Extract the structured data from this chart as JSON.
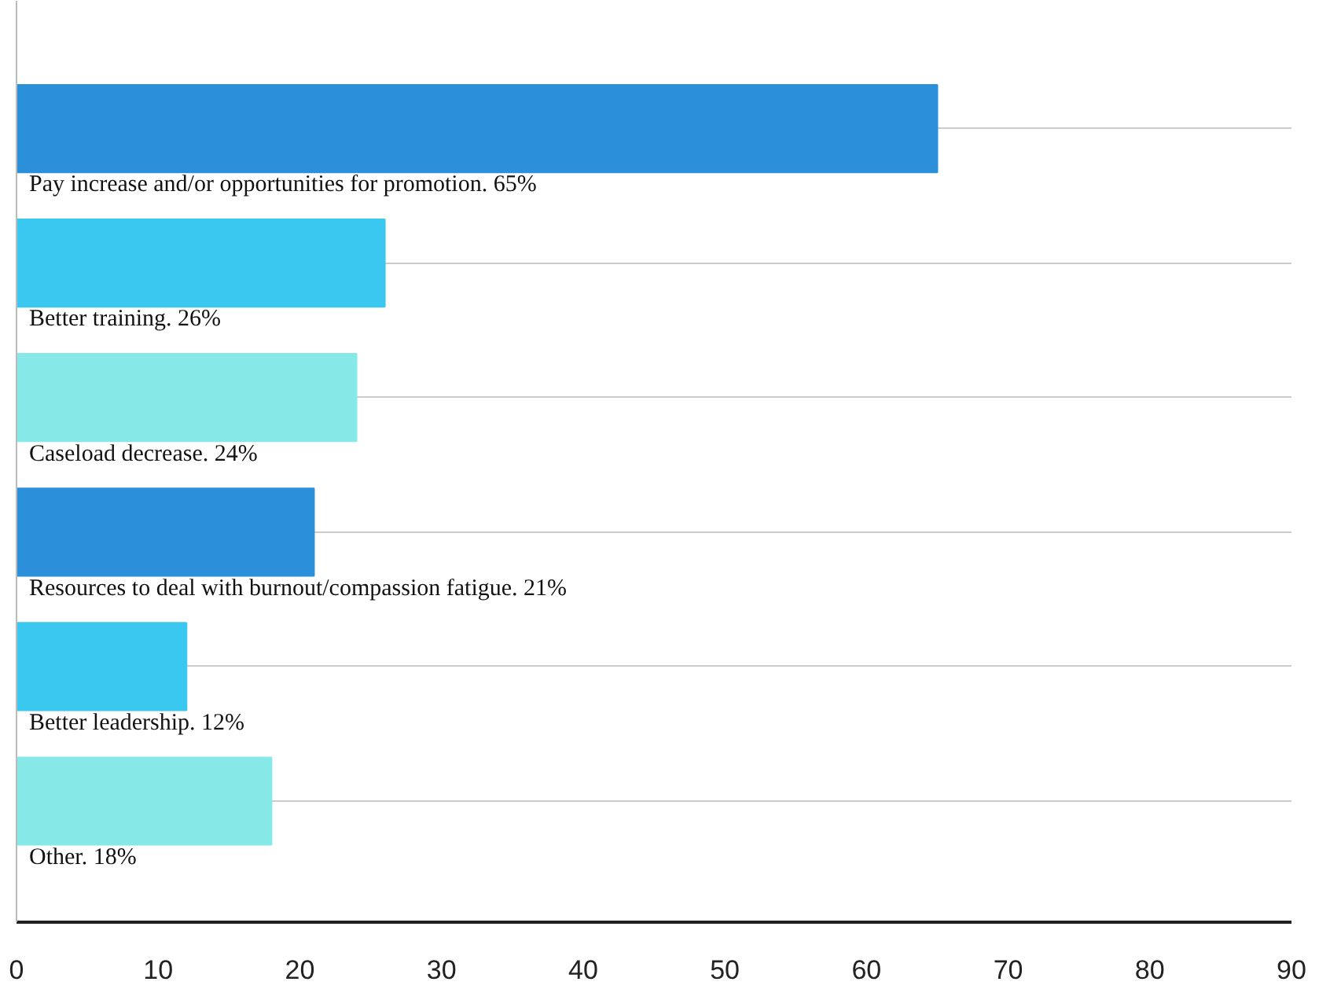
{
  "chart_data": {
    "type": "bar",
    "orientation": "horizontal",
    "categories": [
      "Pay increase and/or opportunities for promotion. 65%",
      "Better training. 26%",
      "Caseload decrease. 24%",
      "Resources to deal with burnout/compassion fatigue. 21%",
      "Better leadership. 12%",
      "Other. 18%"
    ],
    "values": [
      65,
      26,
      24,
      21,
      12,
      18
    ],
    "colors": [
      "#2b90d9",
      "#3ac8f0",
      "#87e8e8",
      "#2b90d9",
      "#3ac8f0",
      "#87e8e8"
    ],
    "xlim": [
      0,
      90
    ],
    "xticks": [
      0,
      10,
      20,
      30,
      40,
      50,
      60,
      70,
      80,
      90
    ],
    "grid": "y"
  }
}
